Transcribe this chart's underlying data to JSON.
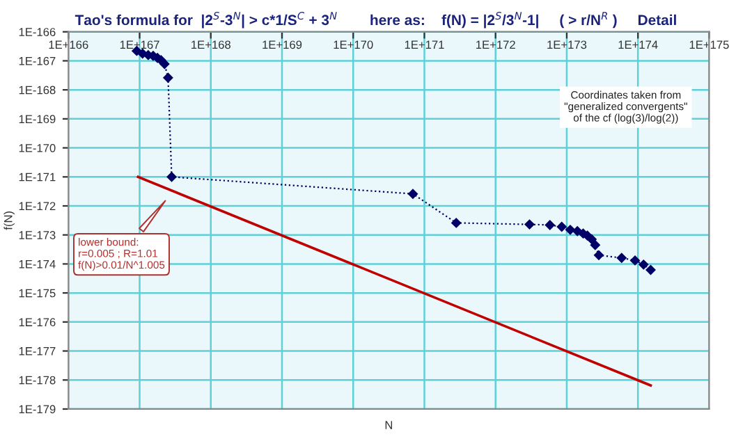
{
  "chart_data": {
    "type": "line",
    "title": "Tao's formula for  |2$^{S}$-3$^{N}$| > c*1/S$^{C}$ + 3$^{N}$        here as:    f(N) = |2$^{S}$/3$^{N}$-1|     ( > r/N$^{R}$ )     Detail",
    "xlabel": "N",
    "ylabel": "f(N)",
    "log": "xy",
    "grid": true,
    "xlim": [
      1e+166,
      1e+175
    ],
    "ylim": [
      1e-179,
      1e-166
    ],
    "xticks": [
      {
        "value": 1e+166,
        "label": "1E+166"
      },
      {
        "value": 1e+167,
        "label": "1E+167"
      },
      {
        "value": 1e+168,
        "label": "1E+168"
      },
      {
        "value": 1e+169,
        "label": "1E+169"
      },
      {
        "value": 1e+170,
        "label": "1E+170"
      },
      {
        "value": 1e+171,
        "label": "1E+171"
      },
      {
        "value": 1e+172,
        "label": "1E+172"
      },
      {
        "value": 1e+173,
        "label": "1E+173"
      },
      {
        "value": 1e+174,
        "label": "1E+174"
      },
      {
        "value": 1e+175,
        "label": "1E+175"
      }
    ],
    "yticks": [
      {
        "value": 1e-166,
        "label": "1E-166"
      },
      {
        "value": 1e-167,
        "label": "1E-167"
      },
      {
        "value": 1e-168,
        "label": "1E-168"
      },
      {
        "value": 1e-169,
        "label": "1E-169"
      },
      {
        "value": 1e-170,
        "label": "1E-170"
      },
      {
        "value": 1e-171,
        "label": "1E-171"
      },
      {
        "value": 1e-172,
        "label": "1E-172"
      },
      {
        "value": 1e-173,
        "label": "1E-173"
      },
      {
        "value": 1e-174,
        "label": "1E-174"
      },
      {
        "value": 1e-175,
        "label": "1E-175"
      },
      {
        "value": 1e-176,
        "label": "1E-176"
      },
      {
        "value": 1e-177,
        "label": "1E-177"
      },
      {
        "value": 1e-178,
        "label": "1E-178"
      },
      {
        "value": 1e-179,
        "label": "1E-179"
      }
    ],
    "series": [
      {
        "color": "#000066",
        "marker": "diamond",
        "line_style": "dotted",
        "x": [
          9.1e+166,
          1.1e+167,
          1.32e+167,
          1.55e+167,
          1.78e+167,
          2e+167,
          2.24e+167,
          2.51e+167,
          2.82e+167,
          6.9e+170,
          2.8e+171,
          3e+172,
          5.8e+172,
          8.5e+172,
          1.12e+173,
          1.41e+173,
          1.7e+173,
          1.95e+173,
          2.24e+173,
          2.51e+173,
          2.82e+173,
          5.9e+173,
          9.1e+173,
          1.2e+174,
          1.51e+174
        ],
        "values": [
          2.2e-167,
          1.78e-167,
          1.58e-167,
          1.48e-167,
          1.26e-167,
          1.05e-167,
          7.8e-168,
          2.6e-168,
          1e-171,
          2.6e-172,
          2.6e-173,
          2.3e-173,
          2.2e-173,
          1.9e-173,
          1.5e-173,
          1.35e-173,
          1.12e-173,
          9.5e-174,
          7.1e-174,
          4.5e-174,
          2e-174,
          1.62e-174,
          1.32e-174,
          9.5e-175,
          6.2e-175
        ]
      },
      {
        "color": "#c00000",
        "marker": "none",
        "line_style": "solid",
        "x": [
          9.5e+166,
          1.51e+174
        ],
        "values": [
          1e-171,
          6.5e-179
        ]
      }
    ],
    "annotations": [
      "lower bound:\nr=0.005 ; R=1.01\nf(N)>0.01/N^1.005",
      "Coordinates taken from\n\"generalized convergents\"\nof the cf (log(3)/log(2))"
    ]
  }
}
